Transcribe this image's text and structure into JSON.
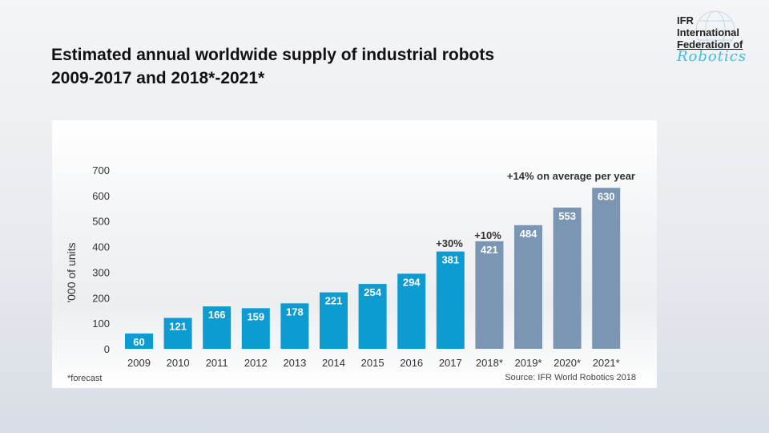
{
  "title": {
    "line1": "Estimated annual worldwide supply of industrial robots",
    "line2": "2009-2017 and 2018*-2021*"
  },
  "logo": {
    "line1": "IFR",
    "line2": "International",
    "line3": "Federation of",
    "line4": "Robotics"
  },
  "chart_data": {
    "type": "bar",
    "categories": [
      "2009",
      "2010",
      "2011",
      "2012",
      "2013",
      "2014",
      "2015",
      "2016",
      "2017",
      "2018*",
      "2019*",
      "2020*",
      "2021*"
    ],
    "values": [
      60,
      121,
      166,
      159,
      178,
      221,
      254,
      294,
      381,
      421,
      484,
      553,
      630
    ],
    "forecast": [
      false,
      false,
      false,
      false,
      false,
      false,
      false,
      false,
      false,
      true,
      true,
      true,
      true
    ],
    "ylabel": "'000 of units",
    "ylim": [
      0,
      700
    ],
    "yticks": [
      0,
      100,
      200,
      300,
      400,
      500,
      600,
      700
    ],
    "grid": false,
    "colors": {
      "actual": "#0e9bd1",
      "forecast": "#7b96b3"
    },
    "annotations": {
      "y2017": "+30%",
      "y2018": "+10%",
      "average": "+14% on average per year"
    },
    "footnote": "*forecast",
    "source": "Source: IFR World Robotics 2018"
  }
}
